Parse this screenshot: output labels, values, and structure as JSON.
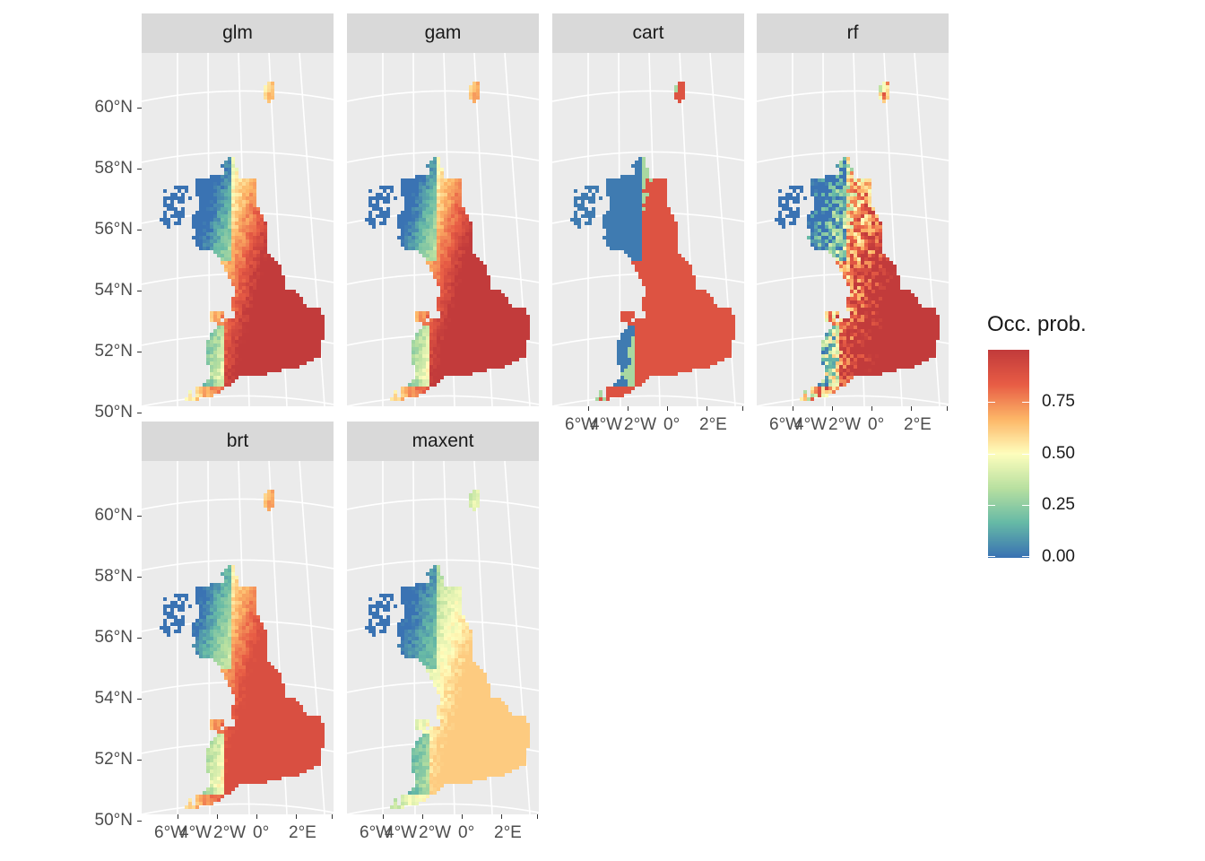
{
  "facets": [
    {
      "label": "glm",
      "scheme": "glm"
    },
    {
      "label": "gam",
      "scheme": "gam"
    },
    {
      "label": "cart",
      "scheme": "cart"
    },
    {
      "label": "rf",
      "scheme": "rf"
    },
    {
      "label": "brt",
      "scheme": "brt"
    },
    {
      "label": "maxent",
      "scheme": "maxent"
    }
  ],
  "y_axis_labels": [
    "60°N",
    "58°N",
    "56°N",
    "54°N",
    "52°N",
    "50°N"
  ],
  "x_axis_labels": [
    "6°W",
    "4°W",
    "2°W",
    "0°",
    "2°E"
  ],
  "legend": {
    "title": "Occ. prob.",
    "ticks": [
      "0.75",
      "0.50",
      "0.25",
      "0.00"
    ],
    "colors": [
      "#3a73b3",
      "#66b9a6",
      "#b8e0a0",
      "#fefebd",
      "#fdb768",
      "#e85d45",
      "#c23b3b"
    ]
  }
}
